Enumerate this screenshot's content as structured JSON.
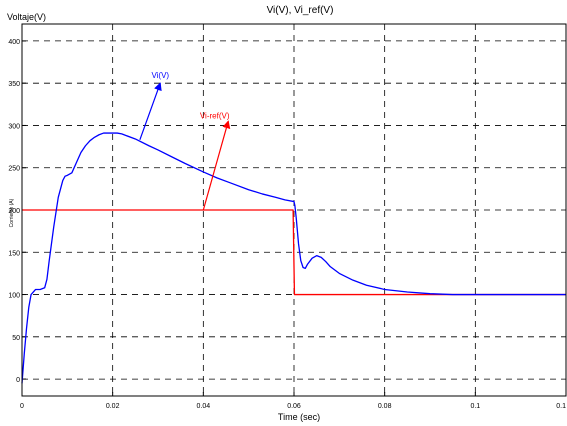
{
  "chart_data": {
    "type": "line",
    "title": "Vi(V), Vi_ref(V)",
    "ylabel": "Voltaje(V)",
    "ylabel_faint": "Corriente (A)",
    "xlabel": "Time (sec)",
    "xlim": [
      0,
      0.12
    ],
    "ylim": [
      -20,
      420
    ],
    "x_ticks": [
      0,
      0.02,
      0.04,
      0.06,
      0.08,
      0.1,
      0.12
    ],
    "x_tick_labels": [
      "0",
      "0.02",
      "0.04",
      "0.06",
      "0.08",
      "0.1",
      "0.1"
    ],
    "y_ticks": [
      0,
      50,
      100,
      150,
      200,
      250,
      300,
      350,
      400
    ],
    "y_tick_labels": [
      "0",
      "50",
      "100",
      "150",
      "200",
      "250",
      "300",
      "350",
      "400"
    ],
    "grid": true,
    "grid_style": "dashed",
    "series": [
      {
        "name": "Vi(V)",
        "color": "#0000ff",
        "x": [
          0,
          0.0005,
          0.001,
          0.0015,
          0.002,
          0.003,
          0.004,
          0.005,
          0.0055,
          0.006,
          0.007,
          0.008,
          0.009,
          0.0095,
          0.01,
          0.011,
          0.012,
          0.013,
          0.014,
          0.015,
          0.016,
          0.017,
          0.018,
          0.019,
          0.02,
          0.021,
          0.022,
          0.023,
          0.025,
          0.028,
          0.03,
          0.033,
          0.036,
          0.04,
          0.043,
          0.046,
          0.05,
          0.053,
          0.056,
          0.058,
          0.06,
          0.0602,
          0.0605,
          0.061,
          0.0615,
          0.062,
          0.0625,
          0.063,
          0.064,
          0.065,
          0.066,
          0.067,
          0.068,
          0.07,
          0.073,
          0.076,
          0.08,
          0.085,
          0.09,
          0.095,
          0.1,
          0.105,
          0.11,
          0.115,
          0.12
        ],
        "y": [
          -5,
          30,
          60,
          85,
          100,
          106,
          106,
          108,
          118,
          140,
          180,
          215,
          235,
          240,
          241,
          244,
          256,
          268,
          276,
          282,
          286,
          289,
          291,
          291,
          291,
          291,
          290,
          288,
          284,
          276,
          271,
          263,
          255,
          245,
          238,
          232,
          224,
          219,
          215,
          212,
          210,
          205,
          190,
          160,
          140,
          132,
          131,
          136,
          143,
          146,
          144,
          139,
          133,
          125,
          117,
          111,
          106,
          103,
          101,
          100,
          100,
          100,
          100,
          100,
          100
        ]
      },
      {
        "name": "Vi-ref(V)",
        "color": "#ff0000",
        "x": [
          0,
          0.0598,
          0.0601,
          0.12
        ],
        "y": [
          200,
          200,
          100,
          100
        ]
      }
    ],
    "annotations": [
      {
        "text": "Vi(V)",
        "color": "#0000ff",
        "label_x": 0.0305,
        "label_y": 356,
        "arrow_from": [
          0.026,
          283
        ],
        "arrow_to": [
          0.0305,
          350
        ]
      },
      {
        "text": "Vi-ref(V)",
        "color": "#ff0000",
        "label_x": 0.0425,
        "label_y": 308,
        "arrow_from": [
          0.04,
          200
        ],
        "arrow_to": [
          0.0455,
          305
        ]
      }
    ]
  }
}
